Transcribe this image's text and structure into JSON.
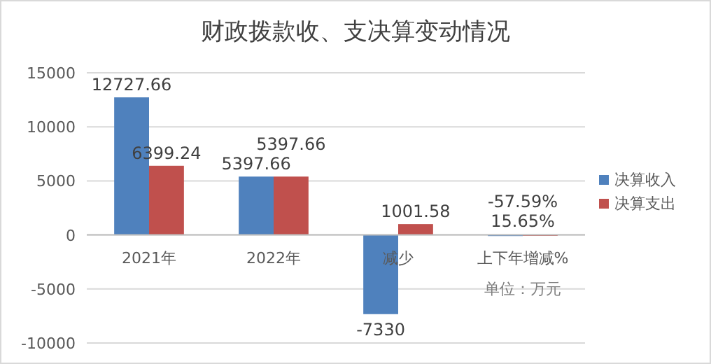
{
  "chart_data": {
    "type": "bar",
    "title": "财政拨款收、支决算变动情况",
    "categories": [
      "2021年",
      "2022年",
      "减少",
      "上下年增减%"
    ],
    "series": [
      {
        "name": "决算收入",
        "color": "#4f81bd",
        "values": [
          12727.66,
          5397.66,
          -7330,
          -57.59
        ],
        "value_labels": [
          "12727.66",
          "5397.66",
          "-7330",
          "-57.59%"
        ]
      },
      {
        "name": "决算支出",
        "color": "#c0504d",
        "values": [
          6399.24,
          5397.66,
          1001.58,
          15.65
        ],
        "value_labels": [
          "6399.24",
          "5397.66",
          "1001.58",
          "15.65%"
        ]
      }
    ],
    "ylim": [
      -10000,
      15000
    ],
    "yticks": [
      -10000,
      -5000,
      0,
      5000,
      10000,
      15000
    ],
    "grid": "y",
    "legend": "right",
    "annotations": [
      "单位：万元"
    ]
  }
}
